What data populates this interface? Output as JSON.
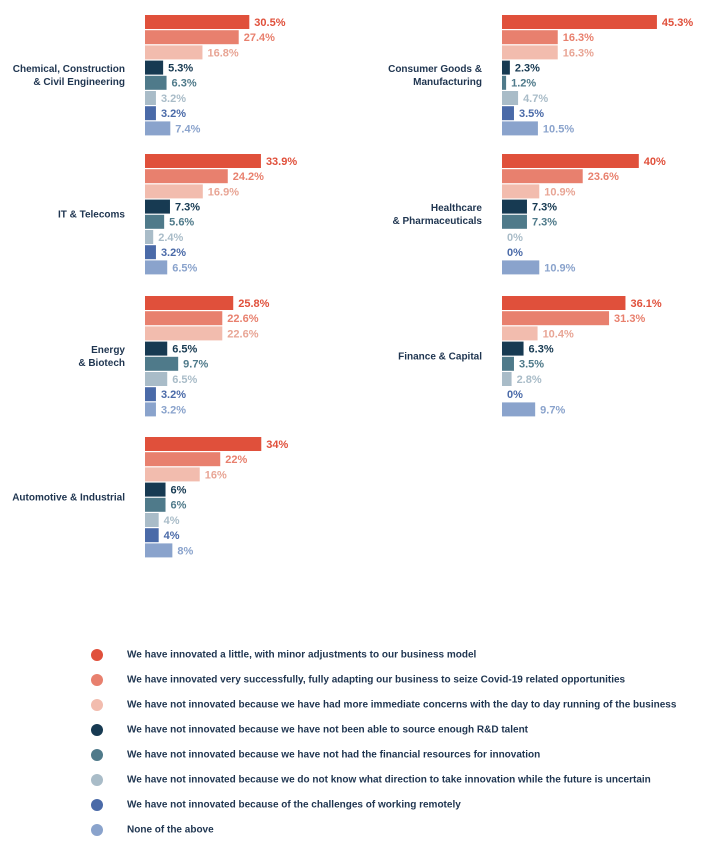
{
  "chart_data": {
    "type": "bar",
    "categories": [
      "Chemical, Construction\n& Civil Engineering",
      "IT & Telecoms",
      "Energy\n& Biotech",
      "Automotive & Industrial",
      "Consumer Goods &\nManufacturing",
      "Healthcare\n& Pharmaceuticals",
      "Finance & Capital"
    ],
    "series": [
      {
        "name": "We have innovated a little, with minor adjustments to our business model",
        "color": "#e0503b",
        "values": [
          30.5,
          33.9,
          25.8,
          34,
          45.3,
          40,
          36.1
        ],
        "value_labels": [
          "30.5%",
          "33.9%",
          "25.8%",
          "34%",
          "45.3%",
          "40%",
          "36.1%"
        ]
      },
      {
        "name": "We have innovated very successfully, fully adapting our business to seize Covid-19 related opportunities",
        "color": "#e8806e",
        "values": [
          27.4,
          24.2,
          22.6,
          22,
          16.3,
          23.6,
          31.3
        ],
        "value_labels": [
          "27.4%",
          "24.2%",
          "22.6%",
          "22%",
          "16.3%",
          "23.6%",
          "31.3%"
        ]
      },
      {
        "name": "We have not innovated because we have had more immediate concerns with the day to day running of the business",
        "color": "#f2bcae",
        "values": [
          16.8,
          16.9,
          22.6,
          16,
          16.3,
          10.9,
          10.4
        ],
        "value_labels": [
          "16.8%",
          "16.9%",
          "22.6%",
          "16%",
          "16.3%",
          "10.9%",
          "10.4%"
        ]
      },
      {
        "name": "We have not innovated because we have not been able to source enough R&D talent",
        "color": "#173a52",
        "values": [
          5.3,
          7.3,
          6.5,
          6,
          2.3,
          7.3,
          6.3
        ],
        "value_labels": [
          "5.3%",
          "7.3%",
          "6.5%",
          "6%",
          "2.3%",
          "7.3%",
          "6.3%"
        ]
      },
      {
        "name": "We have not innovated because we have not had the financial resources for innovation",
        "color": "#4f7a8a",
        "values": [
          6.3,
          5.6,
          9.7,
          6,
          1.2,
          7.3,
          3.5
        ],
        "value_labels": [
          "6.3%",
          "5.6%",
          "9.7%",
          "6%",
          "1.2%",
          "7.3%",
          "3.5%"
        ]
      },
      {
        "name": "We have not innovated because we do not know what direction to take innovation while the future is uncertain",
        "color": "#a9bcc8",
        "values": [
          3.2,
          2.4,
          6.5,
          4,
          4.7,
          0,
          2.8
        ],
        "value_labels": [
          "3.2%",
          "2.4%",
          "6.5%",
          "4%",
          "4.7%",
          "0%",
          "2.8%"
        ]
      },
      {
        "name": "We have not innovated because of the challenges of working remotely",
        "color": "#4a6aa8",
        "values": [
          3.2,
          3.2,
          3.2,
          4,
          3.5,
          0,
          0
        ],
        "value_labels": [
          "3.2%",
          "3.2%",
          "3.2%",
          "4%",
          "3.5%",
          "0%",
          "0%"
        ]
      },
      {
        "name": "None of the above",
        "color": "#8aa3cc",
        "values": [
          7.4,
          6.5,
          3.2,
          8,
          10.5,
          10.9,
          9.7
        ],
        "value_labels": [
          "7.4%",
          "6.5%",
          "3.2%",
          "8%",
          "10.5%",
          "10.9%",
          "9.7%"
        ]
      }
    ]
  }
}
